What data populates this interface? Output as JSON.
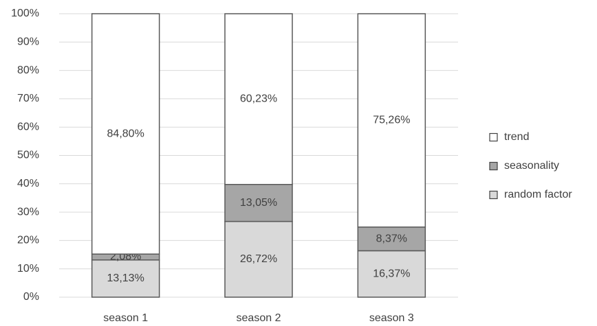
{
  "chart_data": {
    "type": "stacked_bar",
    "categories": [
      "season 1",
      "season 2",
      "season 3"
    ],
    "series": [
      {
        "name": "random factor",
        "color": "#d9d9d9",
        "values": [
          13.13,
          26.72,
          16.37
        ],
        "value_labels": [
          "13,13%",
          "26,72%",
          "16,37%"
        ]
      },
      {
        "name": "seasonality",
        "color": "#a6a6a6",
        "values": [
          2.08,
          13.05,
          8.37
        ],
        "value_labels": [
          "2,08%",
          "13,05%",
          "8,37%"
        ]
      },
      {
        "name": "trend",
        "color": "#ffffff",
        "values": [
          84.8,
          60.23,
          75.26
        ],
        "value_labels": [
          "84,80%",
          "60,23%",
          "75,26%"
        ]
      }
    ],
    "ylim": [
      0,
      100
    ],
    "yticks": [
      {
        "value": 0,
        "label": "0%"
      },
      {
        "value": 10,
        "label": "10%"
      },
      {
        "value": 20,
        "label": "20%"
      },
      {
        "value": 30,
        "label": "30%"
      },
      {
        "value": 40,
        "label": "40%"
      },
      {
        "value": 50,
        "label": "50%"
      },
      {
        "value": 60,
        "label": "60%"
      },
      {
        "value": 70,
        "label": "70%"
      },
      {
        "value": 80,
        "label": "80%"
      },
      {
        "value": 90,
        "label": "90%"
      },
      {
        "value": 100,
        "label": "100%"
      }
    ],
    "grid": true,
    "legend": "right"
  }
}
